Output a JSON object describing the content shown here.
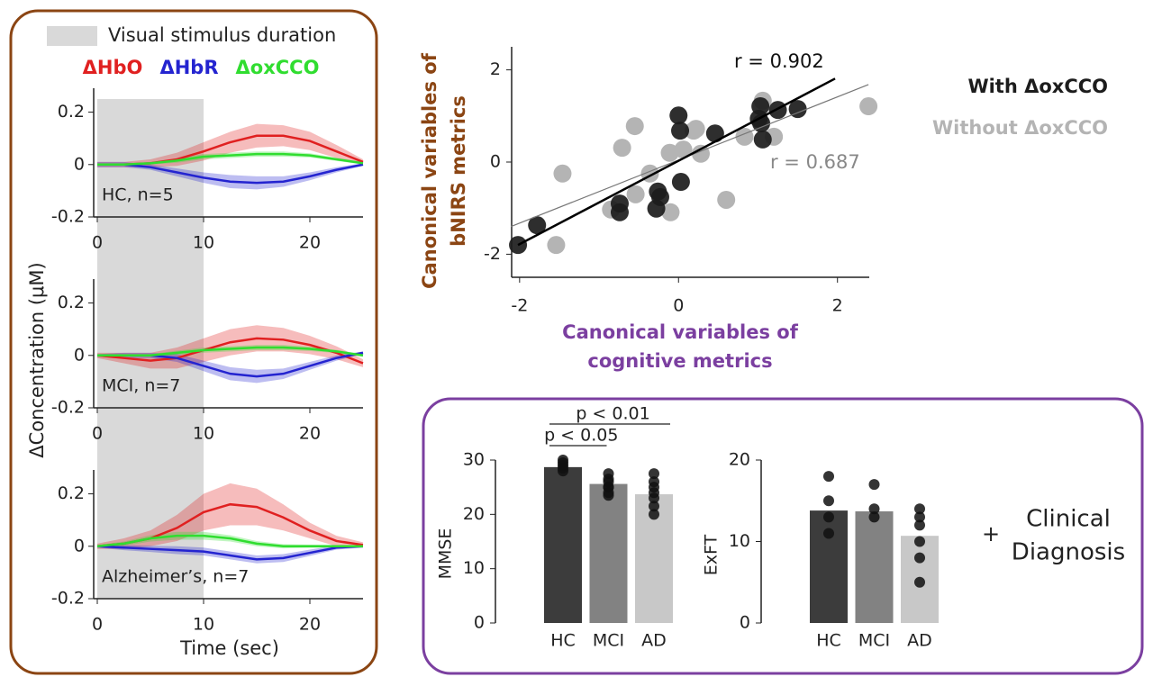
{
  "chart_data": [
    {
      "type": "line",
      "label": "HC, n=5",
      "stimulus_label": "Visual stimulus duration",
      "stimulus": [
        0,
        10
      ],
      "x": [
        0,
        2.5,
        5,
        7.5,
        10,
        12.5,
        15,
        17.5,
        20,
        22.5,
        25
      ],
      "xlim": [
        0,
        25
      ],
      "xticks": [
        0,
        10,
        20
      ],
      "ylim": [
        -0.2,
        0.25
      ],
      "yticks": [
        -0.2,
        0,
        0.2
      ],
      "series": [
        {
          "name": "ΔHbO",
          "color": "#e02020",
          "values": [
            0,
            0,
            0.005,
            0.02,
            0.05,
            0.085,
            0.11,
            0.11,
            0.09,
            0.05,
            0.01
          ],
          "error": [
            0.01,
            0.01,
            0.015,
            0.025,
            0.035,
            0.04,
            0.045,
            0.04,
            0.035,
            0.025,
            0.01
          ]
        },
        {
          "name": "ΔHbR",
          "color": "#2424d0",
          "values": [
            0,
            0,
            -0.01,
            -0.03,
            -0.05,
            -0.065,
            -0.07,
            -0.065,
            -0.045,
            -0.02,
            0
          ],
          "error": [
            0.01,
            0.01,
            0.01,
            0.015,
            0.02,
            0.025,
            0.025,
            0.02,
            0.015,
            0.01,
            0.005
          ]
        },
        {
          "name": "ΔoxCCO",
          "color": "#30dd30",
          "values": [
            0,
            0,
            0.005,
            0.015,
            0.03,
            0.035,
            0.04,
            0.04,
            0.035,
            0.02,
            0.005
          ],
          "error": [
            0.005,
            0.005,
            0.005,
            0.008,
            0.01,
            0.01,
            0.01,
            0.01,
            0.008,
            0.006,
            0.005
          ]
        }
      ]
    },
    {
      "type": "line",
      "label": "MCI, n=7",
      "ylabel": "ΔConcentration (μM)",
      "stimulus": [
        0,
        10
      ],
      "x": [
        0,
        2.5,
        5,
        7.5,
        10,
        12.5,
        15,
        17.5,
        20,
        22.5,
        25
      ],
      "xlim": [
        0,
        25
      ],
      "xticks": [
        0,
        10,
        20
      ],
      "ylim": [
        -0.2,
        0.25
      ],
      "yticks": [
        -0.2,
        0,
        0.2
      ],
      "series": [
        {
          "name": "ΔHbO",
          "color": "#e02020",
          "values": [
            0,
            -0.01,
            -0.02,
            -0.01,
            0.02,
            0.05,
            0.065,
            0.06,
            0.04,
            0.01,
            -0.03
          ],
          "error": [
            0.01,
            0.02,
            0.03,
            0.04,
            0.045,
            0.05,
            0.05,
            0.045,
            0.035,
            0.025,
            0.015
          ]
        },
        {
          "name": "ΔHbR",
          "color": "#2424d0",
          "values": [
            0,
            0,
            0,
            -0.01,
            -0.04,
            -0.07,
            -0.08,
            -0.07,
            -0.04,
            -0.01,
            0.01
          ],
          "error": [
            0.005,
            0.01,
            0.01,
            0.015,
            0.02,
            0.025,
            0.025,
            0.02,
            0.015,
            0.01,
            0.005
          ]
        },
        {
          "name": "ΔoxCCO",
          "color": "#30dd30",
          "values": [
            0,
            0,
            0,
            0.01,
            0.02,
            0.025,
            0.03,
            0.03,
            0.025,
            0.015,
            0
          ],
          "error": [
            0.005,
            0.005,
            0.005,
            0.008,
            0.01,
            0.01,
            0.01,
            0.01,
            0.008,
            0.006,
            0.005
          ]
        }
      ]
    },
    {
      "type": "line",
      "label": "Alzheimer’s, n=7",
      "xlabel": "Time (sec)",
      "stimulus": [
        0,
        10
      ],
      "x": [
        0,
        2.5,
        5,
        7.5,
        10,
        12.5,
        15,
        17.5,
        20,
        22.5,
        25
      ],
      "xlim": [
        0,
        25
      ],
      "xticks": [
        0,
        10,
        20
      ],
      "ylim": [
        -0.2,
        0.25
      ],
      "yticks": [
        -0.2,
        0,
        0.2
      ],
      "series": [
        {
          "name": "ΔHbO",
          "color": "#e02020",
          "values": [
            0,
            0.01,
            0.03,
            0.07,
            0.13,
            0.16,
            0.15,
            0.11,
            0.06,
            0.02,
            0.005
          ],
          "error": [
            0.01,
            0.02,
            0.03,
            0.05,
            0.07,
            0.08,
            0.07,
            0.05,
            0.03,
            0.02,
            0.01
          ]
        },
        {
          "name": "ΔHbR",
          "color": "#2424d0",
          "values": [
            0,
            -0.005,
            -0.01,
            -0.015,
            -0.02,
            -0.035,
            -0.05,
            -0.045,
            -0.025,
            -0.005,
            0
          ],
          "error": [
            0.005,
            0.01,
            0.012,
            0.015,
            0.015,
            0.015,
            0.015,
            0.015,
            0.012,
            0.008,
            0.005
          ]
        },
        {
          "name": "ΔoxCCO",
          "color": "#30dd30",
          "values": [
            0,
            0.01,
            0.03,
            0.04,
            0.04,
            0.03,
            0.01,
            0,
            0,
            0,
            0
          ],
          "error": [
            0.005,
            0.008,
            0.012,
            0.015,
            0.015,
            0.012,
            0.01,
            0.008,
            0.006,
            0.005,
            0.005
          ]
        }
      ]
    },
    {
      "type": "scatter",
      "xlabel": [
        "Canonical variables of",
        "cognitive metrics"
      ],
      "ylabel": [
        "Canonical variables of",
        "bNIRS metrics"
      ],
      "xlim": [
        -2.1,
        2.4
      ],
      "xticks": [
        -2,
        0,
        2
      ],
      "ylim": [
        -2.5,
        2.5
      ],
      "yticks": [
        -2,
        0,
        2
      ],
      "series": [
        {
          "name": "Without ΔoxCCO",
          "color": "#b4b4b4",
          "r_label": "r = 0.687",
          "x": [
            -1.54,
            -1.46,
            -0.85,
            -0.71,
            -0.55,
            -0.54,
            -0.36,
            -0.1,
            -0.11,
            0.06,
            0.19,
            0.22,
            0.28,
            0.6,
            0.83,
            1.06,
            1.2,
            2.39
          ],
          "values": [
            -1.8,
            -0.25,
            -1.03,
            0.31,
            0.78,
            -0.7,
            -0.25,
            -1.09,
            0.2,
            0.27,
            0.68,
            0.72,
            0.18,
            -0.82,
            0.55,
            1.33,
            0.55,
            1.21
          ],
          "fit": {
            "x": [
              -2.11,
              2.39
            ],
            "values": [
              -1.4,
              1.68
            ]
          }
        },
        {
          "name": "With ΔoxCCO",
          "color": "#1c1c1c",
          "r_label": "r = 0.902",
          "x": [
            -2.02,
            -1.78,
            -0.74,
            -0.74,
            -0.26,
            -0.28,
            -0.23,
            0.03,
            0,
            0.02,
            0.46,
            1.03,
            1.04,
            1.06,
            1.01,
            1.25,
            1.5
          ],
          "values": [
            -1.8,
            -1.37,
            -0.9,
            -1.09,
            -0.64,
            -1.01,
            -0.76,
            -0.43,
            1.01,
            0.68,
            0.62,
            1.21,
            0.84,
            0.49,
            0.94,
            1.13,
            1.15
          ],
          "fit": {
            "x": [
              -2.02,
              1.97
            ],
            "values": [
              -1.8,
              1.81
            ]
          }
        }
      ]
    },
    {
      "type": "bar",
      "ylabel": "MMSE",
      "categories": [
        "HC",
        "MCI",
        "AD"
      ],
      "values": [
        28.7,
        25.6,
        23.7
      ],
      "colors": [
        "#3c3c3c",
        "#828282",
        "#c8c8c8"
      ],
      "points": [
        [
          30,
          29.5,
          29,
          28.5,
          28
        ],
        [
          27.5,
          26.5,
          26,
          25,
          25,
          24,
          23.5
        ],
        [
          27.5,
          26,
          25,
          24,
          23,
          21.5,
          20
        ]
      ],
      "ylim": [
        0,
        30.5
      ],
      "yticks": [
        0,
        10,
        20,
        30
      ],
      "significance": [
        {
          "label": "p < 0.05",
          "categories": [
            0,
            1
          ]
        },
        {
          "label": "p < 0.01",
          "categories": [
            0,
            2
          ]
        }
      ]
    },
    {
      "type": "bar",
      "ylabel": "ExFT",
      "categories": [
        "HC",
        "MCI",
        "AD"
      ],
      "values": [
        13.8,
        13.7,
        10.7
      ],
      "colors": [
        "#3c3c3c",
        "#828282",
        "#c8c8c8"
      ],
      "points": [
        [
          18,
          15,
          13,
          11
        ],
        [
          17,
          14,
          13
        ],
        [
          14,
          13,
          12,
          10,
          8,
          5
        ]
      ],
      "ylim": [
        0,
        20
      ],
      "yticks": [
        0,
        10,
        20
      ]
    }
  ],
  "clinical": {
    "plus": "+",
    "lines": [
      "Clinical",
      "Diagnosis"
    ]
  }
}
